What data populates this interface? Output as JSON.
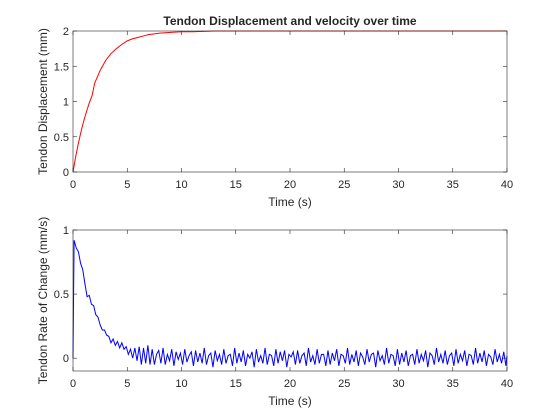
{
  "chart_data": [
    {
      "type": "line",
      "title": "Tendon Displacement and velocity over time",
      "xlabel": "Time (s)",
      "ylabel": "Tendon Displacement (mm)",
      "xlim": [
        0,
        40
      ],
      "ylim": [
        0,
        2
      ],
      "x_ticks": [
        0,
        5,
        10,
        15,
        20,
        25,
        30,
        35,
        40
      ],
      "y_ticks": [
        0,
        0.5,
        1,
        1.5,
        2
      ],
      "y_tick_labels": [
        "0",
        "0.5",
        "1",
        "1.5",
        "2"
      ],
      "grid": false,
      "series": [
        {
          "color": "#ff0000",
          "x": [
            0,
            0.25,
            0.5,
            0.75,
            1,
            1.25,
            1.5,
            1.75,
            2,
            2.5,
            3,
            3.5,
            4,
            4.5,
            5,
            5.5,
            6,
            6.5,
            7,
            7.5,
            8,
            9,
            10,
            11,
            12,
            13,
            14,
            15,
            16,
            18,
            20,
            22,
            24,
            26,
            28,
            30,
            32,
            34,
            36,
            38,
            40
          ],
          "values": [
            0,
            0.22,
            0.41,
            0.58,
            0.73,
            0.86,
            0.98,
            1.08,
            1.26,
            1.44,
            1.58,
            1.68,
            1.75,
            1.81,
            1.86,
            1.89,
            1.91,
            1.93,
            1.95,
            1.96,
            1.97,
            1.98,
            1.99,
            1.99,
            1.995,
            2,
            2,
            2,
            2,
            2,
            2,
            2,
            2,
            2,
            2,
            2,
            2,
            2,
            2,
            2,
            2
          ]
        }
      ]
    },
    {
      "type": "line",
      "title": "",
      "xlabel": "Time (s)",
      "ylabel": "Tendon Rate of Change (mm/s)",
      "xlim": [
        0,
        40
      ],
      "ylim": [
        -0.1,
        1
      ],
      "x_ticks": [
        0,
        5,
        10,
        15,
        20,
        25,
        30,
        35,
        40
      ],
      "y_ticks": [
        0,
        0.5,
        1
      ],
      "y_tick_labels": [
        "0",
        "0.5",
        "1"
      ],
      "grid": false,
      "series": [
        {
          "color": "#0000ff",
          "x": [
            0,
            0.1,
            0.3,
            0.5,
            0.7,
            0.9,
            1.1,
            1.3,
            1.5,
            1.7,
            1.9,
            2.1,
            2.3,
            2.5,
            2.7,
            2.9,
            3.1,
            3.3,
            3.5,
            3.7,
            3.9,
            4.1,
            4.3,
            4.5,
            4.7,
            4.9,
            5.1,
            5.3,
            5.5,
            5.7,
            5.9,
            6.1,
            6.3,
            6.5,
            6.7,
            6.9,
            7.1,
            7.3,
            7.5,
            7.7,
            7.9,
            8.1,
            8.3,
            8.5,
            8.7,
            8.9,
            9.1,
            9.3,
            9.5,
            9.7,
            9.9,
            10.1,
            10.3,
            10.5,
            10.7,
            10.9,
            11.1,
            11.3,
            11.5,
            11.7,
            11.9,
            12.1,
            12.3,
            12.5,
            12.7,
            12.9,
            13.1,
            13.3,
            13.5,
            13.7,
            13.9,
            14.1,
            14.3,
            14.5,
            14.7,
            14.9,
            15.1,
            15.3,
            15.5,
            15.7,
            15.9,
            16.1,
            16.3,
            16.5,
            16.7,
            16.9,
            17.1,
            17.3,
            17.5,
            17.7,
            17.9,
            18.1,
            18.3,
            18.5,
            18.7,
            18.9,
            19.1,
            19.3,
            19.5,
            19.7,
            19.9,
            20.1,
            20.3,
            20.5,
            20.7,
            20.9,
            21.1,
            21.3,
            21.5,
            21.7,
            21.9,
            22.1,
            22.3,
            22.5,
            22.7,
            22.9,
            23.1,
            23.3,
            23.5,
            23.7,
            23.9,
            24.1,
            24.3,
            24.5,
            24.7,
            24.9,
            25.1,
            25.3,
            25.5,
            25.7,
            25.9,
            26.1,
            26.3,
            26.5,
            26.7,
            26.9,
            27.1,
            27.3,
            27.5,
            27.7,
            27.9,
            28.1,
            28.3,
            28.5,
            28.7,
            28.9,
            29.1,
            29.3,
            29.5,
            29.7,
            29.9,
            30.1,
            30.3,
            30.5,
            30.7,
            30.9,
            31.1,
            31.3,
            31.5,
            31.7,
            31.9,
            32.1,
            32.3,
            32.5,
            32.7,
            32.9,
            33.1,
            33.3,
            33.5,
            33.7,
            33.9,
            34.1,
            34.3,
            34.5,
            34.7,
            34.9,
            35.1,
            35.3,
            35.5,
            35.7,
            35.9,
            36.1,
            36.3,
            36.5,
            36.7,
            36.9,
            37.1,
            37.3,
            37.5,
            37.7,
            37.9,
            38.1,
            38.3,
            38.5,
            38.7,
            38.9,
            39.1,
            39.3,
            39.5,
            39.7,
            39.9,
            40
          ],
          "values": [
            0,
            0.92,
            0.86,
            0.83,
            0.74,
            0.69,
            0.58,
            0.48,
            0.49,
            0.42,
            0.41,
            0.34,
            0.32,
            0.26,
            0.22,
            0.22,
            0.18,
            0.17,
            0.12,
            0.15,
            0.1,
            0.13,
            0.08,
            0.12,
            0.07,
            0.09,
            0.03,
            0.07,
            0.0,
            0.08,
            -0.02,
            0.09,
            -0.05,
            0.08,
            -0.04,
            0.1,
            -0.05,
            0.07,
            -0.05,
            0.03,
            0.06,
            -0.04,
            0.08,
            -0.05,
            0.03,
            -0.02,
            0.07,
            -0.06,
            0.05,
            -0.01,
            0.04,
            -0.05,
            0.07,
            -0.03,
            0.02,
            0.05,
            -0.06,
            0.06,
            -0.03,
            0.04,
            -0.04,
            0.08,
            -0.05,
            0.02,
            0.04,
            -0.07,
            0.06,
            -0.02,
            0.03,
            -0.05,
            0.07,
            -0.04,
            0.02,
            0.03,
            -0.06,
            0.08,
            -0.04,
            0.04,
            -0.03,
            0.06,
            -0.06,
            0.03,
            0.0,
            0.05,
            -0.07,
            0.07,
            -0.03,
            0.02,
            -0.04,
            0.08,
            -0.05,
            0.03,
            0.02,
            -0.06,
            0.07,
            -0.04,
            0.05,
            -0.02,
            0.06,
            -0.07,
            0.03,
            0.01,
            0.05,
            -0.05,
            0.06,
            -0.04,
            0.02,
            0.04,
            -0.06,
            0.08,
            -0.03,
            0.02,
            -0.05,
            0.07,
            -0.04,
            0.03,
            0.03,
            -0.06,
            0.06,
            -0.05,
            0.04,
            -0.02,
            0.07,
            -0.06,
            0.03,
            0.02,
            -0.04,
            0.08,
            -0.05,
            0.03,
            -0.03,
            0.06,
            -0.06,
            0.04,
            0.01,
            -0.05,
            0.07,
            -0.03,
            0.03,
            0.04,
            -0.07,
            0.06,
            -0.02,
            0.02,
            -0.05,
            0.08,
            -0.04,
            0.03,
            0.02,
            -0.06,
            0.07,
            -0.05,
            0.04,
            -0.03,
            0.06,
            -0.06,
            0.02,
            0.03,
            -0.05,
            0.07,
            -0.04,
            0.03,
            -0.02,
            0.06,
            -0.07,
            0.04,
            0.02,
            -0.05,
            0.08,
            -0.03,
            0.03,
            -0.04,
            0.06,
            -0.05,
            0.02,
            0.04,
            -0.06,
            0.07,
            -0.04,
            0.03,
            -0.02,
            0.06,
            -0.06,
            0.03,
            0.02,
            -0.05,
            0.08,
            -0.04,
            0.04,
            -0.03,
            0.06,
            -0.06,
            0.03,
            0.01,
            -0.05,
            0.07,
            -0.03,
            0.03,
            -0.04,
            0.05,
            -0.06,
            0.02
          ]
        }
      ]
    }
  ]
}
